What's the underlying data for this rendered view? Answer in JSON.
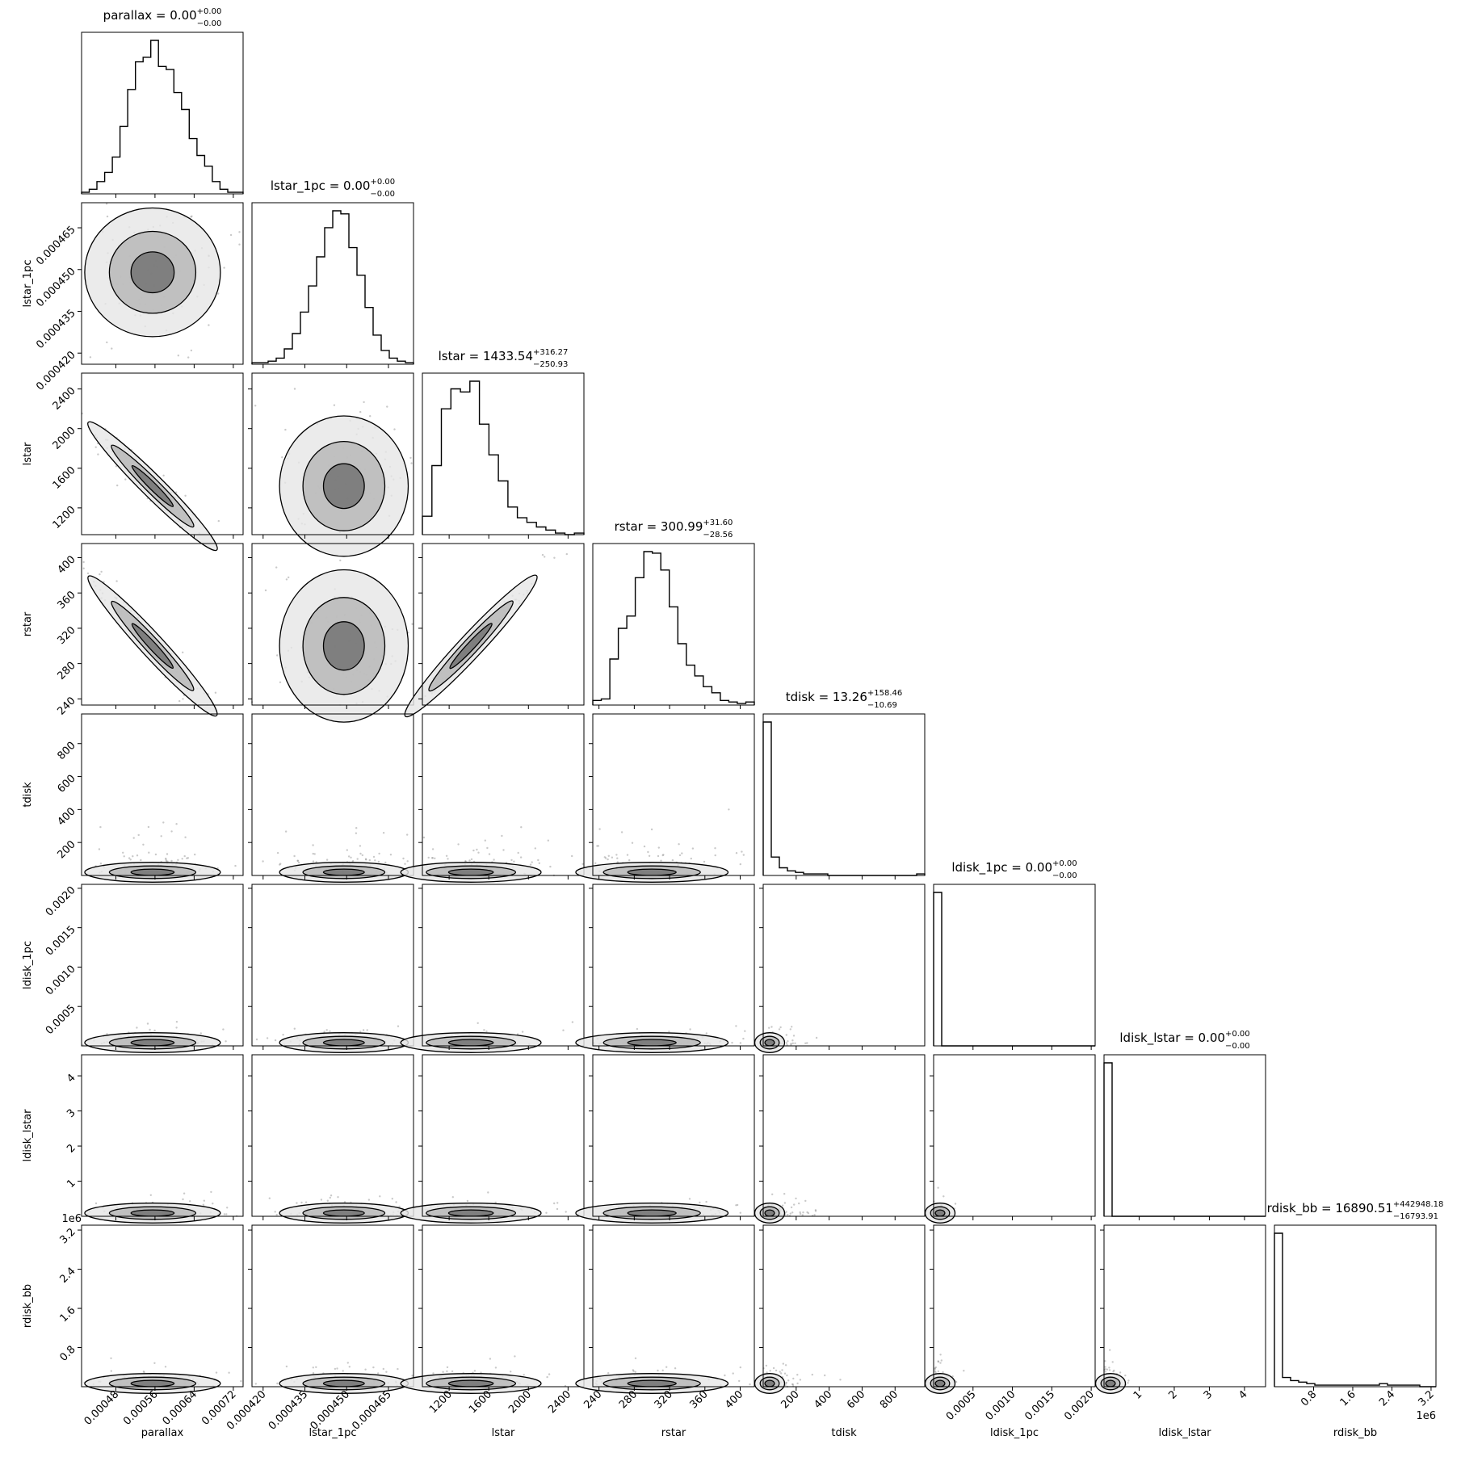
{
  "chart_data": {
    "type": "corner",
    "parameters": [
      {
        "name": "parallax",
        "label": "parallax",
        "median": "0.00",
        "upper": "+0.00",
        "lower": "−0.00",
        "range": [
          0.00041,
          0.00074
        ],
        "ticks": [
          0.00048,
          0.00056,
          0.00064,
          0.00072
        ],
        "tick_labels": [
          "0.00048",
          "0.00056",
          "0.00064",
          "0.00072"
        ],
        "mode": 0.000555,
        "width": 4.5e-05
      },
      {
        "name": "lstar_1pc",
        "label": "lstar_1pc",
        "median": "0.00",
        "upper": "+0.00",
        "lower": "−0.00",
        "range": [
          0.000416,
          0.000474
        ],
        "ticks": [
          0.00042,
          0.000435,
          0.00045,
          0.000465
        ],
        "tick_labels": [
          "0.000420",
          "0.000435",
          "0.000450",
          "0.000465"
        ],
        "mode": 0.000449,
        "width": 7.5e-06
      },
      {
        "name": "lstar",
        "label": "lstar",
        "median": "1433.54",
        "upper": "+316.27",
        "lower": "−250.93",
        "range": [
          930,
          2560
        ],
        "ticks": [
          1200,
          1600,
          2000,
          2400
        ],
        "tick_labels": [
          "1200",
          "1600",
          "2000",
          "2400"
        ],
        "mode": 1420,
        "width": 230
      },
      {
        "name": "rstar",
        "label": "rstar",
        "median": "300.99",
        "upper": "+31.60",
        "lower": "−28.56",
        "range": [
          233,
          416
        ],
        "ticks": [
          240,
          280,
          320,
          360,
          400
        ],
        "tick_labels": [
          "240",
          "280",
          "320",
          "360",
          "400"
        ],
        "mode": 300,
        "width": 28
      },
      {
        "name": "tdisk",
        "label": "tdisk",
        "median": "13.26",
        "upper": "+158.46",
        "lower": "−10.69",
        "range": [
          0,
          980
        ],
        "ticks": [
          200,
          400,
          600,
          800
        ],
        "tick_labels": [
          "200",
          "400",
          "600",
          "800"
        ],
        "mode": 0,
        "width": 40
      },
      {
        "name": "ldisk_1pc",
        "label": "ldisk_1pc",
        "median": "0.00",
        "upper": "+0.00",
        "lower": "−0.00",
        "range": [
          0,
          0.00205
        ],
        "ticks": [
          0.0005,
          0.001,
          0.0015,
          0.002
        ],
        "tick_labels": [
          "0.0005",
          "0.0010",
          "0.0015",
          "0.0020"
        ],
        "mode": 0,
        "width": 4e-05
      },
      {
        "name": "ldisk_lstar",
        "label": "ldisk_lstar",
        "median": "0.00",
        "upper": "+0.00",
        "lower": "−0.00",
        "range": [
          0,
          4.6
        ],
        "ticks": [
          1,
          2,
          3,
          4
        ],
        "tick_labels": [
          "1",
          "2",
          "3",
          "4"
        ],
        "mode": 0,
        "width": 0.08
      },
      {
        "name": "rdisk_bb",
        "label": "rdisk_bb",
        "median": "16890.51",
        "upper": "+442948.18",
        "lower": "−16793.91",
        "range": [
          0,
          3300000
        ],
        "ticks": [
          800000,
          1600000,
          2400000,
          3200000
        ],
        "tick_labels": [
          "0.8",
          "1.6",
          "2.4",
          "3.2"
        ],
        "offset_text": "1e6",
        "mode": 0,
        "width": 70000
      }
    ],
    "histograms": [
      [
        1,
        3,
        8,
        14,
        24,
        44,
        68,
        86,
        89,
        100,
        83,
        81,
        66,
        55,
        36,
        25,
        18,
        8,
        3,
        1,
        1
      ],
      [
        1,
        1,
        2,
        4,
        10,
        20,
        34,
        51,
        70,
        89,
        100,
        98,
        76,
        58,
        37,
        19,
        9,
        4,
        2,
        1
      ],
      [
        12,
        45,
        82,
        95,
        93,
        100,
        72,
        52,
        35,
        18,
        11,
        8,
        5,
        3,
        1,
        0,
        1
      ],
      [
        3,
        4,
        30,
        50,
        58,
        83,
        100,
        99,
        88,
        64,
        40,
        26,
        19,
        12,
        8,
        3,
        2,
        1,
        2
      ],
      [
        100,
        12,
        5,
        3,
        2,
        1,
        1,
        1,
        0,
        0,
        0,
        0,
        0,
        0,
        0,
        0,
        0,
        0,
        0,
        1
      ],
      [
        100,
        0,
        0,
        0,
        0,
        0,
        0,
        0,
        0,
        0,
        0,
        0,
        0,
        0,
        0,
        0,
        0,
        0,
        0,
        0
      ],
      [
        100,
        0,
        0,
        0,
        0,
        0,
        0,
        0,
        0,
        0,
        0,
        0,
        0,
        0,
        0,
        0,
        0,
        0,
        0,
        0
      ],
      [
        100,
        6,
        4,
        3,
        2,
        1,
        1,
        1,
        1,
        1,
        1,
        1,
        1,
        2,
        1,
        1,
        1,
        1,
        0,
        0
      ]
    ],
    "correlations": {
      "2-0": -0.96,
      "3-0": -0.97,
      "3-2": 0.99
    },
    "grid": false,
    "legend": "none"
  }
}
